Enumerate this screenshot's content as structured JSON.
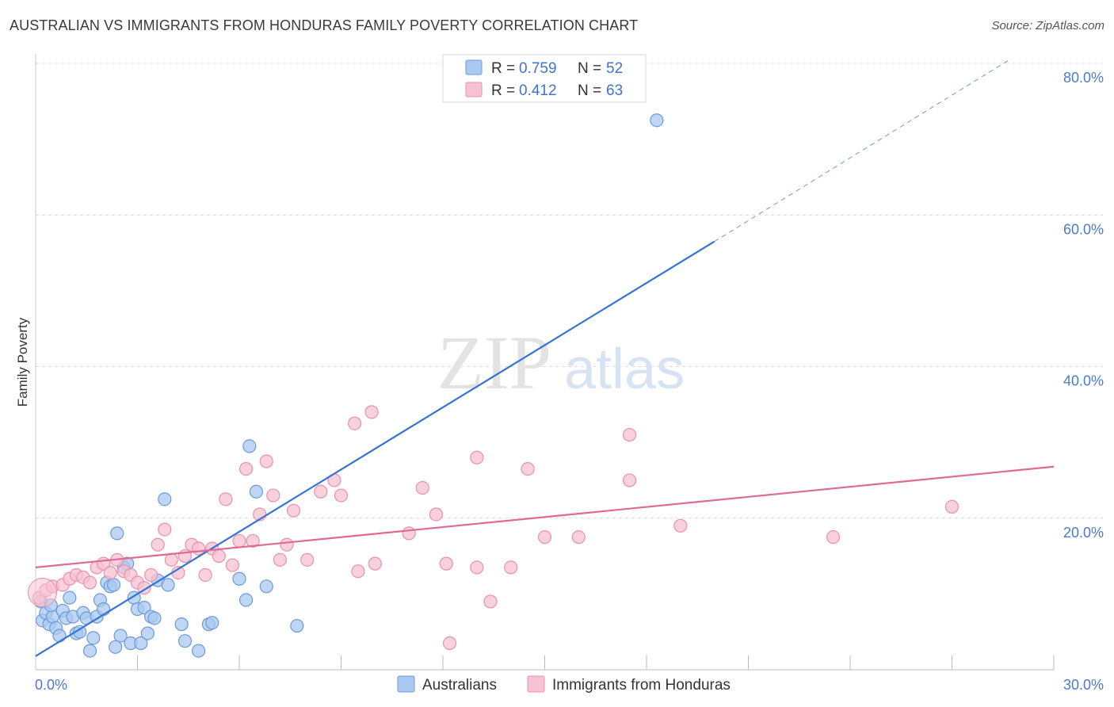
{
  "title": "AUSTRALIAN VS IMMIGRANTS FROM HONDURAS FAMILY POVERTY CORRELATION CHART",
  "source": "Source: ZipAtlas.com",
  "watermark": {
    "zip": "ZIP",
    "atlas": "atlas"
  },
  "colors": {
    "blue_fill": "#aac8f0",
    "blue_stroke": "#6b9bd8",
    "blue_line": "#3674d2",
    "pink_fill": "#f7c2d2",
    "pink_stroke": "#e890ae",
    "pink_line": "#e06a96",
    "grid": "#d9d9d9",
    "tick_text": "#4a7cc9"
  },
  "legend": {
    "rows": [
      {
        "series": "Australians",
        "r_label": "R =",
        "r_value": "0.759",
        "n_label": "N =",
        "n_value": "52"
      },
      {
        "series": "Immigrants from Honduras",
        "r_label": "R =",
        "r_value": "0.412",
        "n_label": "N =",
        "n_value": "63"
      }
    ]
  },
  "chart_data": {
    "type": "scatter",
    "title": "AUSTRALIAN VS IMMIGRANTS FROM HONDURAS FAMILY POVERTY CORRELATION CHART",
    "xlabel": "",
    "ylabel": "Family Poverty",
    "xlim": [
      0,
      30
    ],
    "ylim": [
      0,
      80
    ],
    "x_tick_labels": [
      {
        "value": 0,
        "label": "0.0%"
      },
      {
        "value": 30,
        "label": "30.0%"
      }
    ],
    "y_tick_labels": [
      {
        "value": 20,
        "label": "20.0%"
      },
      {
        "value": 40,
        "label": "40.0%"
      },
      {
        "value": 60,
        "label": "60.0%"
      },
      {
        "value": 80,
        "label": "80.0%"
      }
    ],
    "grid": true,
    "legend_position": "top-center",
    "series": [
      {
        "name": "Australians",
        "color": "#aac8f0",
        "r": 0.759,
        "n": 52,
        "trend": {
          "x0": 0,
          "y0": 1.8,
          "x1": 20,
          "y1": 56.5,
          "dash_x1": 28.7,
          "dash_y1": 80.5
        },
        "points": [
          [
            0.2,
            6.5
          ],
          [
            0.3,
            7.5
          ],
          [
            0.4,
            6.0
          ],
          [
            0.5,
            7.0
          ],
          [
            0.6,
            5.5
          ],
          [
            0.7,
            4.5
          ],
          [
            0.8,
            7.8
          ],
          [
            0.9,
            6.8
          ],
          [
            1.0,
            9.5
          ],
          [
            1.1,
            7.0
          ],
          [
            1.2,
            4.8
          ],
          [
            1.3,
            5.0
          ],
          [
            1.4,
            7.5
          ],
          [
            1.5,
            6.8
          ],
          [
            1.6,
            2.5
          ],
          [
            1.7,
            4.2
          ],
          [
            1.8,
            7.0
          ],
          [
            1.9,
            9.2
          ],
          [
            2.0,
            8.0
          ],
          [
            2.1,
            11.5
          ],
          [
            2.2,
            11.0
          ],
          [
            2.3,
            11.2
          ],
          [
            2.4,
            18.0
          ],
          [
            2.5,
            4.5
          ],
          [
            2.6,
            13.5
          ],
          [
            2.7,
            14.0
          ],
          [
            2.8,
            3.5
          ],
          [
            2.9,
            9.5
          ],
          [
            3.0,
            8.0
          ],
          [
            3.1,
            3.5
          ],
          [
            3.2,
            8.2
          ],
          [
            3.3,
            4.8
          ],
          [
            3.4,
            7.0
          ],
          [
            3.5,
            6.8
          ],
          [
            3.6,
            11.8
          ],
          [
            3.8,
            22.5
          ],
          [
            3.9,
            11.2
          ],
          [
            4.3,
            6.0
          ],
          [
            4.4,
            3.8
          ],
          [
            4.8,
            2.5
          ],
          [
            5.1,
            6.0
          ],
          [
            5.2,
            6.2
          ],
          [
            6.2,
            9.2
          ],
          [
            6.0,
            12.0
          ],
          [
            6.3,
            29.5
          ],
          [
            6.5,
            23.5
          ],
          [
            6.8,
            11.0
          ],
          [
            7.7,
            5.8
          ],
          [
            18.3,
            72.5
          ],
          [
            0.15,
            9.0
          ],
          [
            0.45,
            8.5
          ],
          [
            2.35,
            3.0
          ]
        ]
      },
      {
        "name": "Immigrants from Honduras",
        "color": "#f7c2d2",
        "r": 0.412,
        "n": 63,
        "trend": {
          "x0": 0,
          "y0": 13.5,
          "x1": 30,
          "y1": 26.8
        },
        "points": [
          [
            0.1,
            9.5
          ],
          [
            0.3,
            10.5
          ],
          [
            0.5,
            11.0
          ],
          [
            0.8,
            11.2
          ],
          [
            1.0,
            12.0
          ],
          [
            1.2,
            12.5
          ],
          [
            1.4,
            12.2
          ],
          [
            1.6,
            11.5
          ],
          [
            1.8,
            13.5
          ],
          [
            2.0,
            14.0
          ],
          [
            2.2,
            12.8
          ],
          [
            2.4,
            14.5
          ],
          [
            2.6,
            13.0
          ],
          [
            2.8,
            12.5
          ],
          [
            3.0,
            11.5
          ],
          [
            3.2,
            10.8
          ],
          [
            3.4,
            12.5
          ],
          [
            3.6,
            16.5
          ],
          [
            3.8,
            18.5
          ],
          [
            4.0,
            14.5
          ],
          [
            4.2,
            12.8
          ],
          [
            4.4,
            15.0
          ],
          [
            4.6,
            16.5
          ],
          [
            4.8,
            16.0
          ],
          [
            5.0,
            12.5
          ],
          [
            5.2,
            16.0
          ],
          [
            5.4,
            15.0
          ],
          [
            5.6,
            22.5
          ],
          [
            5.8,
            13.8
          ],
          [
            6.0,
            17.0
          ],
          [
            6.2,
            26.5
          ],
          [
            6.4,
            17.0
          ],
          [
            6.6,
            20.5
          ],
          [
            6.8,
            27.5
          ],
          [
            7.0,
            23.0
          ],
          [
            7.2,
            14.5
          ],
          [
            7.4,
            16.5
          ],
          [
            7.6,
            21.0
          ],
          [
            8.0,
            14.5
          ],
          [
            8.4,
            23.5
          ],
          [
            8.8,
            25.0
          ],
          [
            9.0,
            23.0
          ],
          [
            9.4,
            32.5
          ],
          [
            9.5,
            13.0
          ],
          [
            9.9,
            34.0
          ],
          [
            10.0,
            14.0
          ],
          [
            11.0,
            18.0
          ],
          [
            11.4,
            24.0
          ],
          [
            11.8,
            20.5
          ],
          [
            12.1,
            14.0
          ],
          [
            12.2,
            3.5
          ],
          [
            13.0,
            28.0
          ],
          [
            13.0,
            13.5
          ],
          [
            13.4,
            9.0
          ],
          [
            14.0,
            13.5
          ],
          [
            14.5,
            26.5
          ],
          [
            15.0,
            17.5
          ],
          [
            16.0,
            17.5
          ],
          [
            17.5,
            25.0
          ],
          [
            17.5,
            31.0
          ],
          [
            19.0,
            19.0
          ],
          [
            23.5,
            17.5
          ],
          [
            27.0,
            21.5
          ]
        ]
      }
    ]
  }
}
